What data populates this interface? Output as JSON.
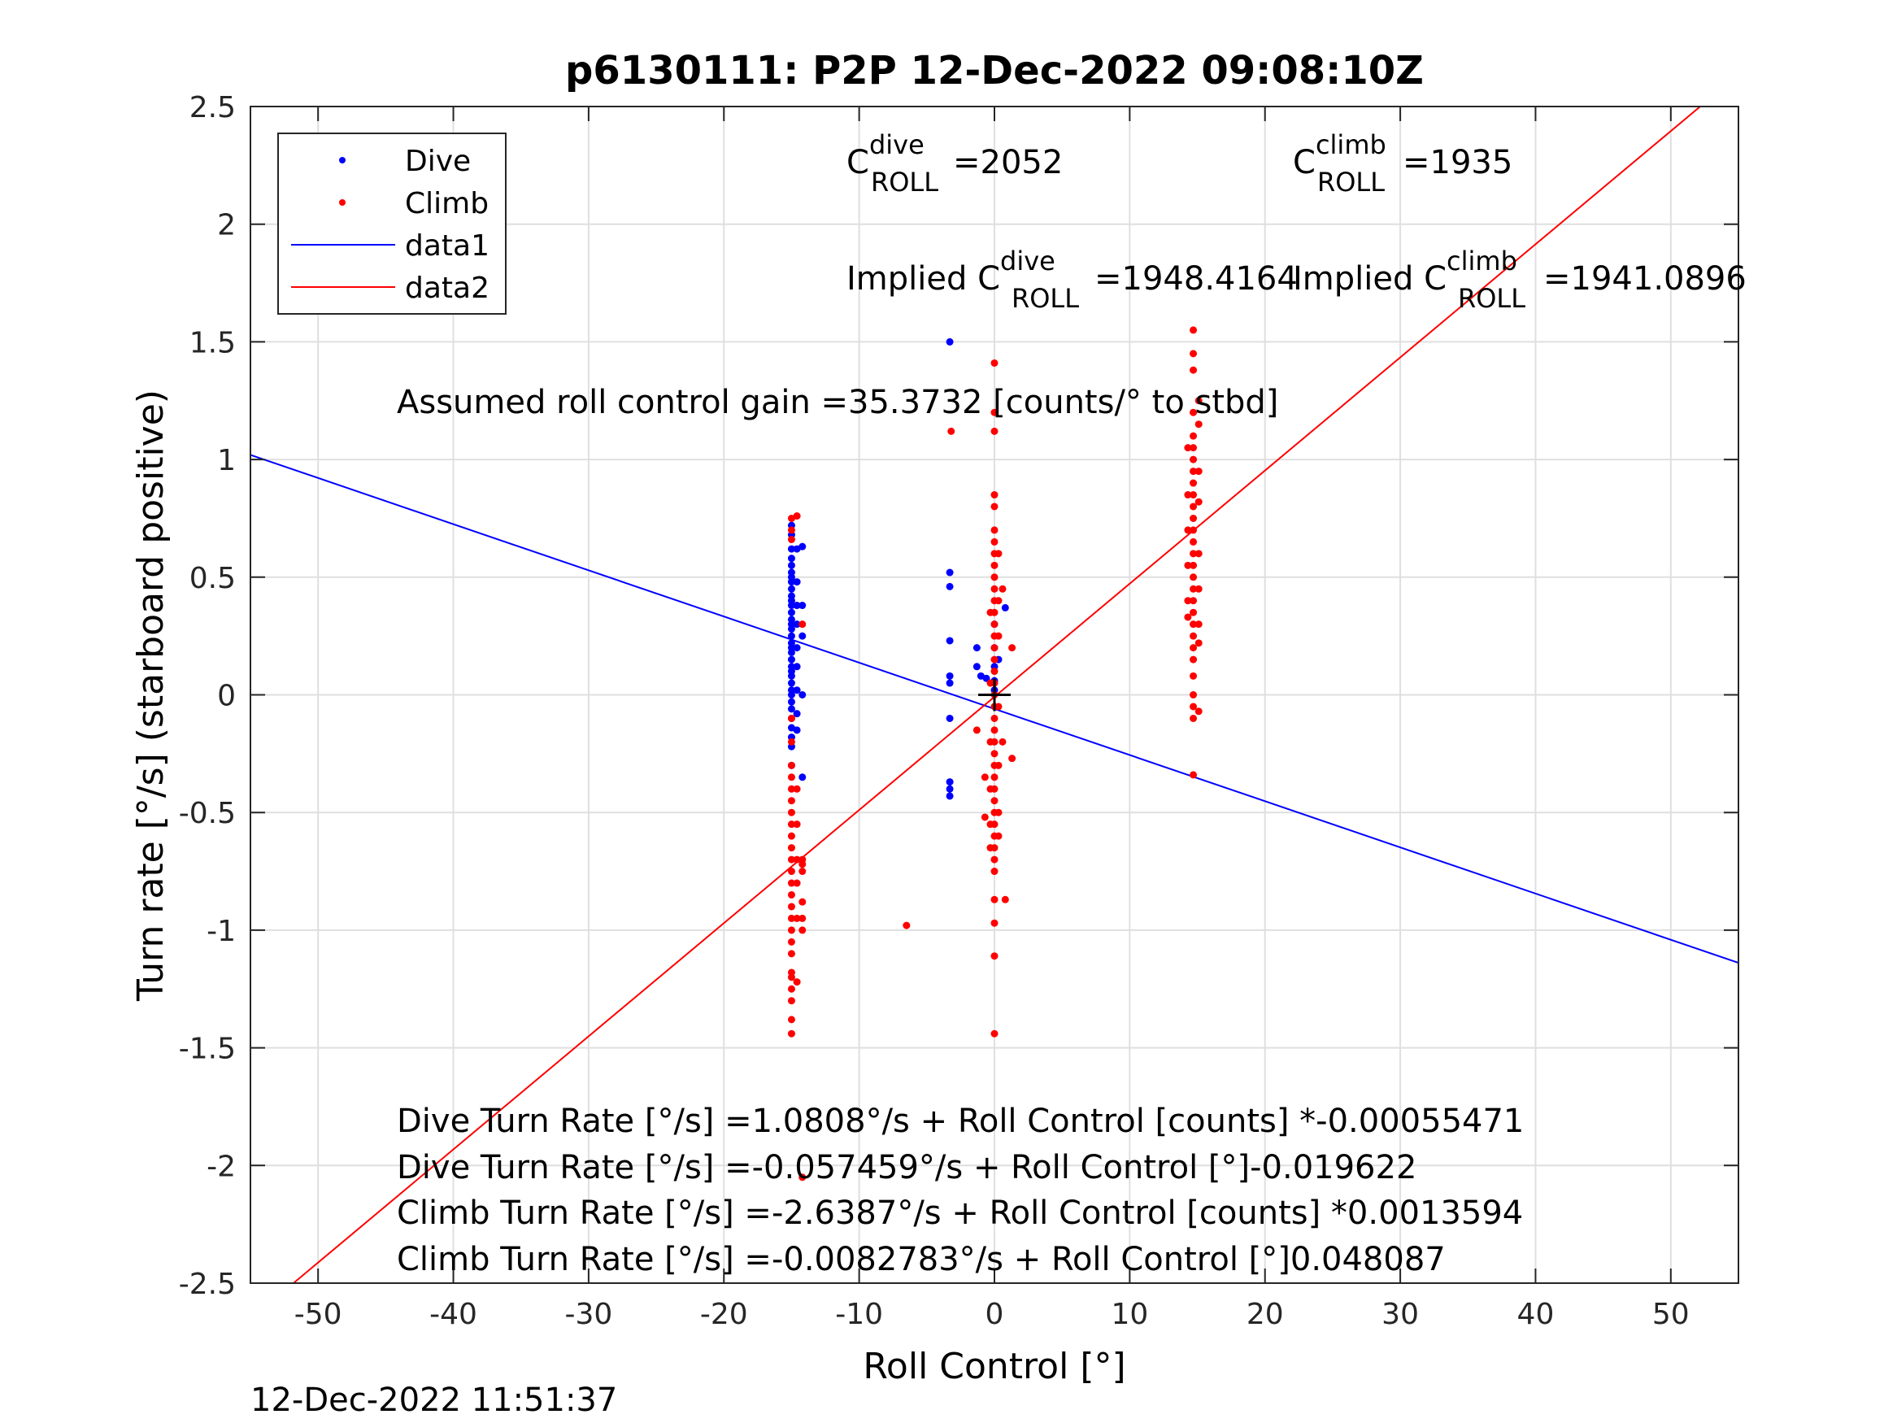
{
  "chart_data": {
    "type": "scatter",
    "title": "p6130111: P2P 12-Dec-2022 09:08:10Z",
    "xlabel": "Roll Control [°]",
    "ylabel": "Turn rate [°/s] (starboard positive)",
    "xlim": [
      -55,
      55
    ],
    "ylim": [
      -2.5,
      2.5
    ],
    "x_ticks": [
      -50,
      -40,
      -30,
      -20,
      -10,
      0,
      10,
      20,
      30,
      40,
      50
    ],
    "x_tick_labels": [
      "-50",
      "-40",
      "-30",
      "-20",
      "-10",
      "0",
      "10",
      "20",
      "30",
      "40",
      "50"
    ],
    "y_ticks": [
      -2.5,
      -2,
      -1.5,
      -1,
      -0.5,
      0,
      0.5,
      1,
      1.5,
      2,
      2.5
    ],
    "y_tick_labels": [
      "-2.5",
      "-2",
      "-1.5",
      "-1",
      "-0.5",
      "0",
      "0.5",
      "1",
      "1.5",
      "2",
      "2.5"
    ],
    "grid": true,
    "legend_position": "top-left",
    "legend": [
      {
        "label": "Dive",
        "kind": "marker",
        "color": "#0000ff"
      },
      {
        "label": "Climb",
        "kind": "marker",
        "color": "#ff0000"
      },
      {
        "label": "data1",
        "kind": "line",
        "color": "#0000ff"
      },
      {
        "label": "data2",
        "kind": "line",
        "color": "#ff0000"
      }
    ],
    "series": [
      {
        "name": "Dive",
        "kind": "points",
        "color": "#0000ff",
        "points": [
          [
            -15,
            0.72
          ],
          [
            -15,
            0.68
          ],
          [
            -15,
            0.62
          ],
          [
            -15,
            0.58
          ],
          [
            -15,
            0.55
          ],
          [
            -15,
            0.52
          ],
          [
            -15,
            0.5
          ],
          [
            -15,
            0.48
          ],
          [
            -15,
            0.45
          ],
          [
            -15,
            0.42
          ],
          [
            -15,
            0.4
          ],
          [
            -15,
            0.38
          ],
          [
            -15,
            0.35
          ],
          [
            -15,
            0.32
          ],
          [
            -15,
            0.3
          ],
          [
            -15,
            0.28
          ],
          [
            -15,
            0.25
          ],
          [
            -15,
            0.22
          ],
          [
            -15,
            0.2
          ],
          [
            -15,
            0.18
          ],
          [
            -15,
            0.15
          ],
          [
            -15,
            0.12
          ],
          [
            -15,
            0.1
          ],
          [
            -15,
            0.08
          ],
          [
            -15,
            0.05
          ],
          [
            -15,
            0.02
          ],
          [
            -15,
            0.0
          ],
          [
            -15,
            -0.03
          ],
          [
            -15,
            -0.06
          ],
          [
            -15,
            -0.1
          ],
          [
            -15,
            -0.14
          ],
          [
            -15,
            -0.18
          ],
          [
            -15,
            -0.22
          ],
          [
            -15,
            -0.3
          ],
          [
            -14.6,
            0.62
          ],
          [
            -14.6,
            0.48
          ],
          [
            -14.6,
            0.38
          ],
          [
            -14.6,
            0.3
          ],
          [
            -14.6,
            0.2
          ],
          [
            -14.6,
            0.12
          ],
          [
            -14.6,
            0.02
          ],
          [
            -14.6,
            -0.08
          ],
          [
            -14.6,
            -0.15
          ],
          [
            -14.2,
            0.63
          ],
          [
            -14.2,
            0.38
          ],
          [
            -14.2,
            0.25
          ],
          [
            -14.2,
            0.0
          ],
          [
            -3.3,
            1.5
          ],
          [
            -3.3,
            0.52
          ],
          [
            -3.3,
            0.46
          ],
          [
            -3.3,
            0.23
          ],
          [
            -3.3,
            0.08
          ],
          [
            -3.3,
            0.05
          ],
          [
            -3.3,
            -0.1
          ],
          [
            -3.3,
            -0.37
          ],
          [
            -3.3,
            -0.4
          ],
          [
            -3.3,
            -0.43
          ],
          [
            -1.3,
            0.2
          ],
          [
            -1.3,
            0.12
          ],
          [
            -1.0,
            0.08
          ],
          [
            -0.6,
            0.07
          ],
          [
            0,
            0.3
          ],
          [
            0,
            0.2
          ],
          [
            0,
            0.12
          ],
          [
            0,
            0.06
          ],
          [
            0,
            0.02
          ],
          [
            0.3,
            0.15
          ],
          [
            0.8,
            0.37
          ],
          [
            -14.2,
            -0.35
          ]
        ]
      },
      {
        "name": "Climb",
        "kind": "points",
        "color": "#ff0000",
        "points": [
          [
            -15,
            0.75
          ],
          [
            -15,
            0.7
          ],
          [
            -15,
            0.66
          ],
          [
            -15,
            -0.1
          ],
          [
            -15,
            -0.2
          ],
          [
            -15,
            -0.3
          ],
          [
            -15,
            -0.35
          ],
          [
            -15,
            -0.4
          ],
          [
            -15,
            -0.45
          ],
          [
            -15,
            -0.5
          ],
          [
            -15,
            -0.55
          ],
          [
            -15,
            -0.6
          ],
          [
            -15,
            -0.65
          ],
          [
            -15,
            -0.7
          ],
          [
            -15,
            -0.75
          ],
          [
            -15,
            -0.8
          ],
          [
            -15,
            -0.85
          ],
          [
            -15,
            -0.9
          ],
          [
            -15,
            -0.95
          ],
          [
            -15,
            -1.0
          ],
          [
            -15,
            -1.05
          ],
          [
            -15,
            -1.1
          ],
          [
            -15,
            -1.18
          ],
          [
            -15,
            -1.2
          ],
          [
            -15,
            -1.25
          ],
          [
            -15,
            -1.3
          ],
          [
            -15,
            -1.38
          ],
          [
            -15,
            -1.44
          ],
          [
            -14.6,
            0.76
          ],
          [
            -14.6,
            -0.4
          ],
          [
            -14.6,
            -0.55
          ],
          [
            -14.6,
            -0.7
          ],
          [
            -14.6,
            -0.8
          ],
          [
            -14.6,
            -0.95
          ],
          [
            -14.6,
            -1.22
          ],
          [
            -14.2,
            0.3
          ],
          [
            -14.2,
            -0.7
          ],
          [
            -14.2,
            -0.72
          ],
          [
            -14.2,
            -0.75
          ],
          [
            -14.2,
            -0.88
          ],
          [
            -14.2,
            -0.95
          ],
          [
            -14.2,
            -1.0
          ],
          [
            -14.2,
            -2.05
          ],
          [
            -6.5,
            -0.98
          ],
          [
            -3.2,
            1.12
          ],
          [
            -1.3,
            -0.15
          ],
          [
            0,
            1.41
          ],
          [
            0,
            1.2
          ],
          [
            0,
            1.12
          ],
          [
            0,
            0.85
          ],
          [
            0,
            0.8
          ],
          [
            0,
            0.7
          ],
          [
            0,
            0.65
          ],
          [
            0,
            0.6
          ],
          [
            0,
            0.55
          ],
          [
            0,
            0.5
          ],
          [
            0,
            0.45
          ],
          [
            0,
            0.4
          ],
          [
            0,
            0.35
          ],
          [
            0,
            0.3
          ],
          [
            0,
            0.25
          ],
          [
            0,
            0.2
          ],
          [
            0,
            0.15
          ],
          [
            0,
            0.1
          ],
          [
            0,
            0.05
          ],
          [
            0,
            0.0
          ],
          [
            0,
            -0.05
          ],
          [
            0,
            -0.1
          ],
          [
            0,
            -0.15
          ],
          [
            0,
            -0.2
          ],
          [
            0,
            -0.25
          ],
          [
            0,
            -0.3
          ],
          [
            0,
            -0.35
          ],
          [
            0,
            -0.4
          ],
          [
            0,
            -0.45
          ],
          [
            0,
            -0.5
          ],
          [
            0,
            -0.55
          ],
          [
            0,
            -0.6
          ],
          [
            0,
            -0.65
          ],
          [
            0,
            -0.7
          ],
          [
            0,
            -0.75
          ],
          [
            0,
            -0.87
          ],
          [
            0,
            -0.97
          ],
          [
            0,
            -1.11
          ],
          [
            0,
            -1.44
          ],
          [
            -0.3,
            0.35
          ],
          [
            -0.3,
            0.05
          ],
          [
            -0.3,
            -0.2
          ],
          [
            -0.3,
            -0.4
          ],
          [
            -0.3,
            -0.55
          ],
          [
            -0.3,
            -0.65
          ],
          [
            0.3,
            0.6
          ],
          [
            0.3,
            0.4
          ],
          [
            0.3,
            0.25
          ],
          [
            0.3,
            -0.05
          ],
          [
            0.3,
            -0.3
          ],
          [
            0.3,
            -0.5
          ],
          [
            0.3,
            -0.6
          ],
          [
            -0.7,
            -0.35
          ],
          [
            -0.7,
            -0.52
          ],
          [
            0.6,
            0.45
          ],
          [
            0.6,
            -0.2
          ],
          [
            0.8,
            -0.87
          ],
          [
            1.3,
            0.2
          ],
          [
            1.3,
            -0.27
          ],
          [
            14.7,
            1.55
          ],
          [
            14.7,
            1.45
          ],
          [
            14.7,
            1.38
          ],
          [
            14.7,
            1.2
          ],
          [
            14.7,
            1.1
          ],
          [
            14.7,
            1.05
          ],
          [
            14.7,
            1.0
          ],
          [
            14.7,
            0.95
          ],
          [
            14.7,
            0.9
          ],
          [
            14.7,
            0.85
          ],
          [
            14.7,
            0.8
          ],
          [
            14.7,
            0.75
          ],
          [
            14.7,
            0.7
          ],
          [
            14.7,
            0.65
          ],
          [
            14.7,
            0.6
          ],
          [
            14.7,
            0.55
          ],
          [
            14.7,
            0.5
          ],
          [
            14.7,
            0.45
          ],
          [
            14.7,
            0.4
          ],
          [
            14.7,
            0.35
          ],
          [
            14.7,
            0.3
          ],
          [
            14.7,
            0.25
          ],
          [
            14.7,
            0.2
          ],
          [
            14.7,
            0.15
          ],
          [
            14.7,
            0.08
          ],
          [
            14.7,
            0.0
          ],
          [
            14.7,
            -0.05
          ],
          [
            14.7,
            -0.1
          ],
          [
            14.3,
            1.05
          ],
          [
            14.3,
            0.85
          ],
          [
            14.3,
            0.7
          ],
          [
            14.3,
            0.55
          ],
          [
            14.3,
            0.4
          ],
          [
            14.3,
            0.33
          ],
          [
            15.1,
            1.25
          ],
          [
            15.1,
            1.15
          ],
          [
            15.1,
            0.95
          ],
          [
            15.1,
            0.82
          ],
          [
            15.1,
            0.6
          ],
          [
            15.1,
            0.45
          ],
          [
            15.1,
            0.3
          ],
          [
            15.1,
            0.22
          ],
          [
            15.1,
            -0.07
          ],
          [
            14.7,
            -0.34
          ]
        ]
      },
      {
        "name": "data1",
        "kind": "line",
        "color": "#0000ff",
        "x": [
          -55,
          55
        ],
        "y": [
          1.0196,
          -1.1388
        ]
      },
      {
        "name": "data2",
        "kind": "line",
        "color": "#ff0000",
        "x": [
          -55,
          55
        ],
        "y": [
          -2.653,
          2.636
        ]
      }
    ],
    "center_marker": {
      "x": 0,
      "y": 0,
      "color": "#000000"
    },
    "annotations": {
      "c_dive_main": "C",
      "c_dive_sup": "dive",
      "c_dive_sub": "ROLL",
      "c_dive_val": "=2052",
      "c_climb_main": "C",
      "c_climb_sup": "climb",
      "c_climb_sub": "ROLL",
      "c_climb_val": "=1935",
      "implied_dive_main": "Implied C",
      "implied_dive_sup": "dive",
      "implied_dive_sub": "ROLL",
      "implied_dive_val": "=1948.4164",
      "implied_climb_main": "Implied C",
      "implied_climb_sup": "climb",
      "implied_climb_sub": "ROLL",
      "implied_climb_val": "=1941.0896",
      "gain": "Assumed roll control gain =35.3732 [counts/° to stbd]",
      "fit1": "Dive Turn Rate [°/s] =1.0808°/s + Roll Control [counts] *-0.00055471",
      "fit2": "Dive Turn Rate [°/s] =-0.057459°/s + Roll Control [°]-0.019622",
      "fit3": "Climb Turn Rate [°/s] =-2.6387°/s + Roll Control [counts] *0.0013594",
      "fit4": "Climb Turn Rate [°/s] =-0.0082783°/s + Roll Control [°]0.048087"
    },
    "timestamp": "12-Dec-2022 11:51:37"
  }
}
